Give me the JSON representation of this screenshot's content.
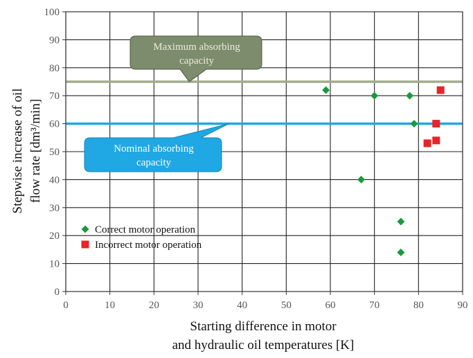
{
  "chart_data": {
    "type": "scatter",
    "xlabel_lines": [
      "Starting difference in motor",
      "and hydraulic oil temperatures [K]"
    ],
    "ylabel_lines": [
      "Stepwise increase of oil",
      "flow rate [dm³/min]"
    ],
    "xlim": [
      0,
      90
    ],
    "ylim": [
      0,
      100
    ],
    "xticks": [
      0,
      10,
      20,
      30,
      40,
      50,
      60,
      70,
      80,
      90
    ],
    "yticks": [
      0,
      10,
      20,
      30,
      40,
      50,
      60,
      70,
      80,
      90,
      100
    ],
    "xtick_labels": [
      "0",
      "10",
      "20",
      "30",
      "40",
      "50",
      "60",
      "70",
      "80",
      "90"
    ],
    "ytick_labels": [
      "0",
      "10",
      "20",
      "30",
      "40",
      "50",
      "60",
      "70",
      "80",
      "90",
      "100"
    ],
    "grid": true,
    "legend_position": "lower-left",
    "series": [
      {
        "name": "Correct motor operation",
        "marker": "diamond",
        "color": "#1a9a3c",
        "points": [
          {
            "x": 59,
            "y": 72
          },
          {
            "x": 70,
            "y": 70
          },
          {
            "x": 78,
            "y": 70
          },
          {
            "x": 79,
            "y": 60
          },
          {
            "x": 67,
            "y": 40
          },
          {
            "x": 76,
            "y": 25
          },
          {
            "x": 76,
            "y": 14
          }
        ]
      },
      {
        "name": "Incorrect motor operation",
        "marker": "square",
        "color": "#e8242a",
        "points": [
          {
            "x": 85,
            "y": 72
          },
          {
            "x": 84,
            "y": 60
          },
          {
            "x": 84,
            "y": 54
          },
          {
            "x": 82,
            "y": 53
          }
        ]
      }
    ],
    "reference_lines": [
      {
        "name": "maximum",
        "y": 75,
        "color": "#a0ad8a"
      },
      {
        "name": "nominal",
        "y": 60,
        "color": "#1fa8e3"
      }
    ],
    "annotations": [
      {
        "text_lines": [
          "Maximum absorbing",
          "capacity"
        ],
        "fill": "#7d8c6c",
        "text_color": "#e9ecd9",
        "pointer_target": {
          "x": 28,
          "y": 75
        }
      },
      {
        "text_lines": [
          "Nominal absorbing",
          "capacity"
        ],
        "fill": "#1fa8e3",
        "text_color": "#ffffff",
        "pointer_target": {
          "x": 37,
          "y": 60
        }
      }
    ]
  }
}
